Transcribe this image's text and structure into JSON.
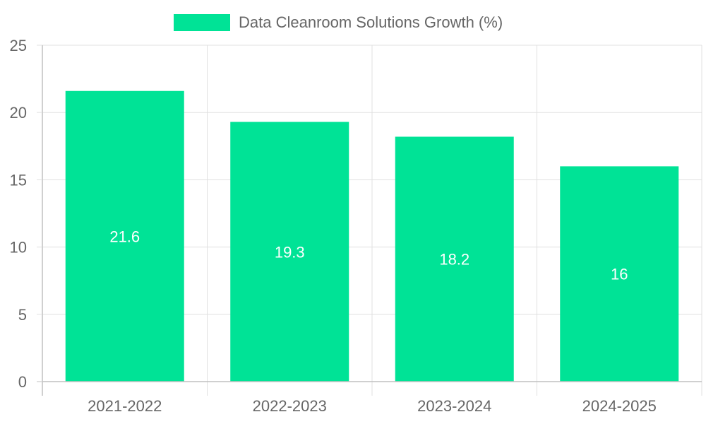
{
  "chart_data": {
    "type": "bar",
    "categories": [
      "2021-2022",
      "2022-2023",
      "2023-2024",
      "2024-2025"
    ],
    "series": [
      {
        "name": "Data Cleanroom Solutions Growth (%)",
        "values": [
          21.6,
          19.3,
          18.2,
          16
        ],
        "color": "#00e396"
      }
    ],
    "ylim": [
      0,
      25
    ],
    "yticks": [
      0,
      5,
      10,
      15,
      20,
      25
    ],
    "data_labels": [
      "21.6",
      "19.3",
      "18.2",
      "16"
    ],
    "legend_position": "top-center",
    "grid": true,
    "colors": {
      "grid": "#e0e0e0",
      "axis": "#c0c0c0",
      "text": "#666666",
      "label": "#ffffff"
    }
  }
}
